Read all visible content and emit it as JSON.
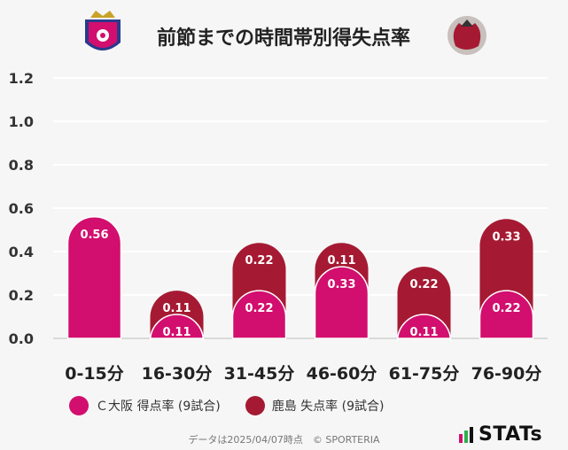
{
  "chart_data": {
    "type": "bar",
    "title": "前節までの時間帯別得失点率",
    "categories": [
      "0-15分",
      "16-30分",
      "31-45分",
      "46-60分",
      "61-75分",
      "76-90分"
    ],
    "series": [
      {
        "name": "Ｃ大阪 得点率 (9試合)",
        "color": "#d20e6e",
        "values": [
          0.56,
          0.11,
          0.22,
          0.33,
          0.11,
          0.22
        ]
      },
      {
        "name": "鹿島 失点率 (9試合)",
        "color": "#a51a32",
        "values": [
          0,
          0.11,
          0.22,
          0.11,
          0.22,
          0.33
        ]
      }
    ],
    "stacked": true,
    "ylim": [
      0,
      1.2
    ],
    "yticks": [
      "0.0",
      "0.2",
      "0.4",
      "0.6",
      "0.8",
      "1.0",
      "1.2"
    ],
    "grid": true
  },
  "legend": {
    "home": "Ｃ大阪 得点率 (9試合)",
    "away": "鹿島 失点率 (9試合)"
  },
  "footer": "データは2025/04/07時点　© SPORTERIA",
  "brand": {
    "text": "STATs"
  }
}
